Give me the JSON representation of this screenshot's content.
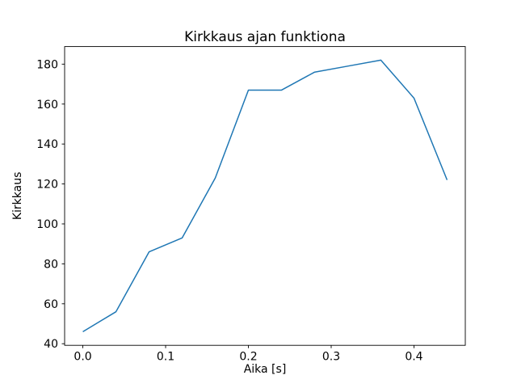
{
  "figure": {
    "background": "#ffffff"
  },
  "chart_data": {
    "type": "line",
    "title": "Kirkkaus ajan funktiona",
    "xlabel": "Aika [s]",
    "ylabel": "Kirkkaus",
    "x": [
      0.0,
      0.04,
      0.08,
      0.12,
      0.16,
      0.2,
      0.24,
      0.28,
      0.32,
      0.36,
      0.4,
      0.44
    ],
    "y": [
      46,
      56,
      86,
      93,
      123,
      167,
      167,
      176,
      179,
      182,
      163,
      122
    ],
    "xlim": [
      -0.022,
      0.462
    ],
    "ylim": [
      39.2,
      188.8
    ],
    "xticks": {
      "values": [
        0.0,
        0.1,
        0.2,
        0.3,
        0.4
      ],
      "labels": [
        "0.0",
        "0.1",
        "0.2",
        "0.3",
        "0.4"
      ]
    },
    "yticks": {
      "values": [
        40,
        60,
        80,
        100,
        120,
        140,
        160,
        180
      ],
      "labels": [
        "40",
        "60",
        "80",
        "100",
        "120",
        "140",
        "160",
        "180"
      ]
    },
    "grid": false,
    "legend": false,
    "markers": false,
    "line_color": "#1f77b4",
    "line_width": 1.5,
    "spine_color": "#000000",
    "tick_color": "#000000"
  }
}
